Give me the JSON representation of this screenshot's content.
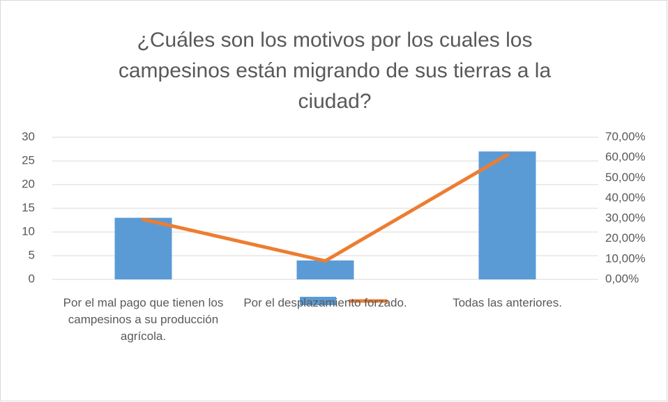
{
  "chart_data": {
    "type": "bar",
    "title": "¿Cuáles son los motivos por los cuales los campesinos están migrando de sus tierras a la ciudad?",
    "categories": [
      "Por el mal pago que tienen los campesinos a su producción agrícola.",
      "Por el desplazamiento forzado.",
      "Todas las anteriores."
    ],
    "series": [
      {
        "type": "bar",
        "color": "#5b9bd5",
        "values": [
          13,
          4,
          27
        ]
      },
      {
        "type": "line",
        "axis": "y2",
        "color": "#ed7d31",
        "values": [
          29.55,
          9.09,
          61.36
        ]
      }
    ],
    "ylim": [
      0,
      30
    ],
    "yticks": [
      0,
      5,
      10,
      15,
      20,
      25,
      30
    ],
    "y2lim": [
      0,
      70
    ],
    "y2ticks": [
      {
        "value": 0,
        "label": "0,00%"
      },
      {
        "value": 10,
        "label": "10,00%"
      },
      {
        "value": 20,
        "label": "20,00%"
      },
      {
        "value": 30,
        "label": "30,00%"
      },
      {
        "value": 40,
        "label": "40,00%"
      },
      {
        "value": 50,
        "label": "50,00%"
      },
      {
        "value": 60,
        "label": "60,00%"
      },
      {
        "value": 70,
        "label": "70,00%"
      }
    ],
    "grid": true
  }
}
